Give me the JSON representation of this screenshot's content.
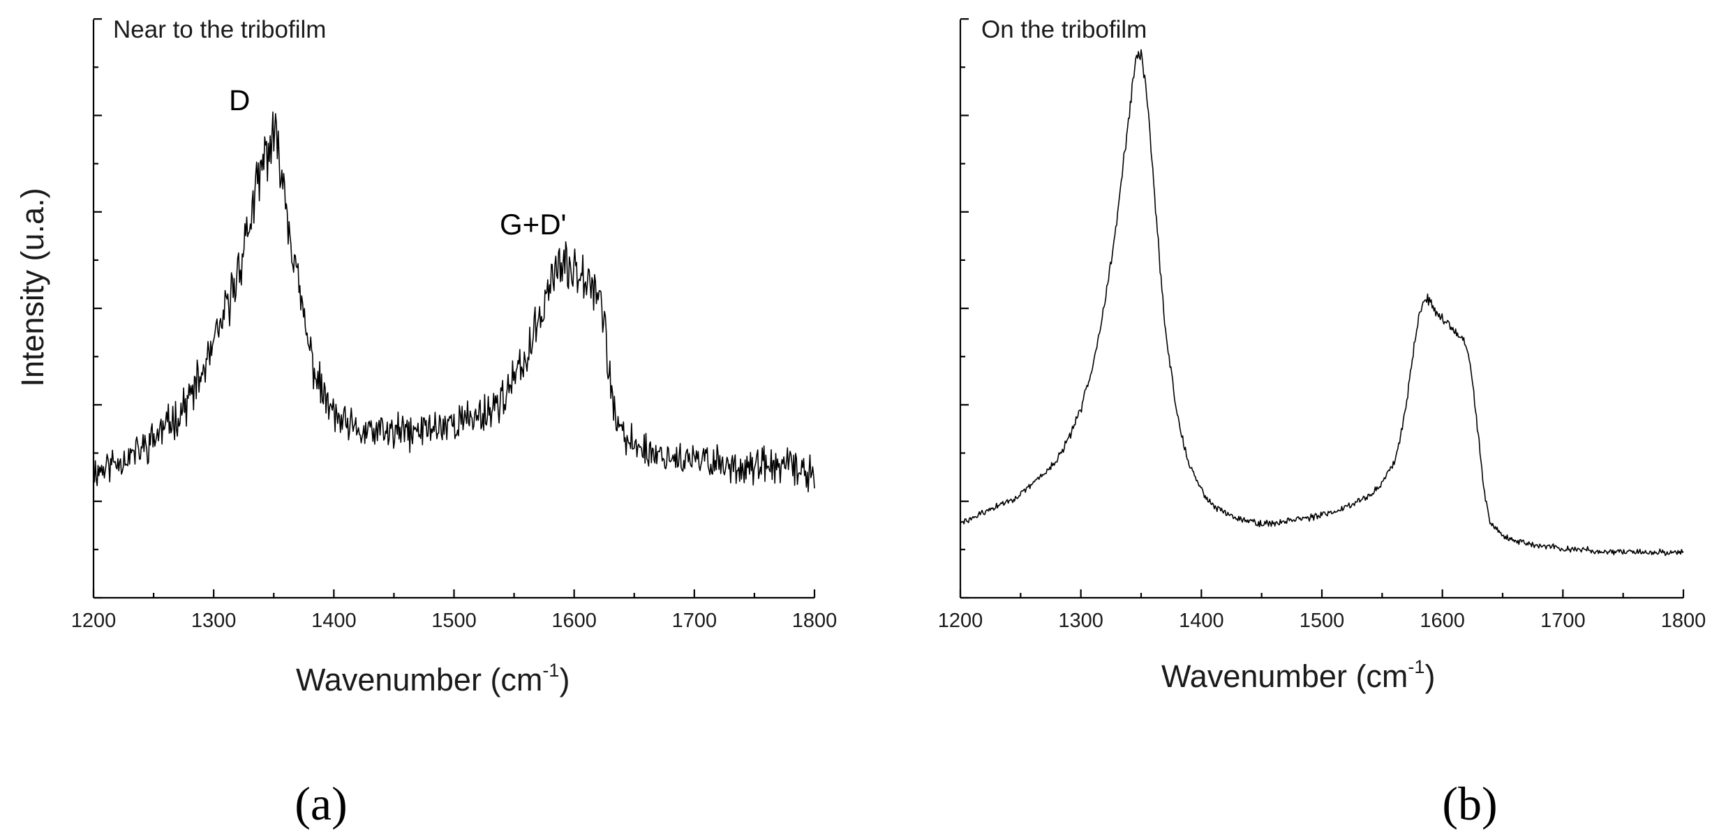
{
  "figure": {
    "captions": [
      "(a)",
      "(b)"
    ]
  },
  "chart_data": [
    {
      "type": "line",
      "panel": "a",
      "title": "Near to the tribofilm",
      "xlabel": "Wavenumber (cm",
      "xlabel_sup": "-1",
      "xlabel_close": ")",
      "ylabel": "Intensity (u.a.)",
      "xlim": [
        1200,
        1800
      ],
      "ylim": [
        0,
        1
      ],
      "x_ticks": [
        1200,
        1300,
        1400,
        1500,
        1600,
        1700,
        1800
      ],
      "x_tick_labels": [
        "1200",
        "1300",
        "1400",
        "1500",
        "1600",
        "1700",
        "1800"
      ],
      "y_tick_labels_shown": false,
      "annotations": [
        {
          "text": "D",
          "x": 1348,
          "y": 0.87
        },
        {
          "text": "G+D'",
          "x": 1600,
          "y": 0.63
        }
      ],
      "series": [
        {
          "name": "Near to the tribofilm",
          "noise": 0.028,
          "x": [
            1200,
            1210,
            1220,
            1230,
            1240,
            1250,
            1260,
            1270,
            1280,
            1290,
            1300,
            1310,
            1320,
            1330,
            1340,
            1345,
            1350,
            1355,
            1360,
            1370,
            1380,
            1390,
            1400,
            1410,
            1420,
            1430,
            1440,
            1450,
            1460,
            1470,
            1480,
            1490,
            1500,
            1510,
            1520,
            1530,
            1540,
            1550,
            1560,
            1570,
            1575,
            1580,
            1585,
            1590,
            1595,
            1600,
            1605,
            1610,
            1615,
            1620,
            1625,
            1630,
            1635,
            1640,
            1650,
            1660,
            1670,
            1680,
            1690,
            1700,
            1710,
            1720,
            1730,
            1740,
            1750,
            1760,
            1770,
            1780,
            1790,
            1800
          ],
          "y": [
            0.22,
            0.23,
            0.24,
            0.25,
            0.26,
            0.28,
            0.3,
            0.32,
            0.35,
            0.39,
            0.44,
            0.5,
            0.57,
            0.66,
            0.75,
            0.79,
            0.8,
            0.78,
            0.7,
            0.55,
            0.43,
            0.36,
            0.32,
            0.3,
            0.29,
            0.29,
            0.29,
            0.29,
            0.29,
            0.29,
            0.3,
            0.3,
            0.31,
            0.31,
            0.32,
            0.33,
            0.35,
            0.38,
            0.42,
            0.48,
            0.52,
            0.56,
            0.58,
            0.58,
            0.57,
            0.58,
            0.58,
            0.57,
            0.56,
            0.54,
            0.48,
            0.38,
            0.31,
            0.28,
            0.27,
            0.26,
            0.25,
            0.25,
            0.24,
            0.24,
            0.24,
            0.24,
            0.23,
            0.23,
            0.23,
            0.23,
            0.23,
            0.23,
            0.22,
            0.22
          ]
        }
      ]
    },
    {
      "type": "line",
      "panel": "b",
      "title": "On the tribofilm",
      "xlabel": "Wavenumber (cm",
      "xlabel_sup": "-1",
      "xlabel_close": ")",
      "ylabel": "",
      "xlim": [
        1200,
        1800
      ],
      "ylim": [
        0,
        1
      ],
      "x_ticks": [
        1200,
        1300,
        1400,
        1500,
        1600,
        1700,
        1800
      ],
      "x_tick_labels": [
        "1200",
        "1300",
        "1400",
        "1500",
        "1600",
        "1700",
        "1800"
      ],
      "y_tick_labels_shown": false,
      "annotations": [],
      "series": [
        {
          "name": "On the tribofilm",
          "noise": 0.006,
          "x": [
            1200,
            1210,
            1220,
            1230,
            1240,
            1250,
            1260,
            1270,
            1280,
            1290,
            1300,
            1310,
            1320,
            1330,
            1335,
            1340,
            1345,
            1348,
            1350,
            1355,
            1360,
            1365,
            1370,
            1380,
            1390,
            1400,
            1410,
            1420,
            1430,
            1440,
            1450,
            1460,
            1470,
            1480,
            1490,
            1500,
            1510,
            1520,
            1530,
            1540,
            1550,
            1560,
            1565,
            1570,
            1575,
            1580,
            1585,
            1590,
            1595,
            1600,
            1605,
            1610,
            1615,
            1620,
            1625,
            1630,
            1635,
            1640,
            1650,
            1660,
            1670,
            1680,
            1690,
            1700,
            1710,
            1720,
            1730,
            1740,
            1750,
            1760,
            1770,
            1780,
            1790,
            1800
          ],
          "y": [
            0.13,
            0.14,
            0.15,
            0.16,
            0.17,
            0.18,
            0.2,
            0.22,
            0.24,
            0.28,
            0.33,
            0.41,
            0.52,
            0.66,
            0.76,
            0.85,
            0.93,
            0.96,
            0.95,
            0.88,
            0.74,
            0.6,
            0.47,
            0.32,
            0.23,
            0.19,
            0.16,
            0.15,
            0.14,
            0.135,
            0.13,
            0.13,
            0.135,
            0.14,
            0.14,
            0.145,
            0.15,
            0.16,
            0.17,
            0.18,
            0.2,
            0.24,
            0.28,
            0.34,
            0.42,
            0.49,
            0.53,
            0.52,
            0.5,
            0.49,
            0.48,
            0.47,
            0.46,
            0.44,
            0.38,
            0.28,
            0.18,
            0.13,
            0.11,
            0.1,
            0.095,
            0.09,
            0.09,
            0.085,
            0.085,
            0.085,
            0.08,
            0.08,
            0.08,
            0.08,
            0.08,
            0.08,
            0.08,
            0.08
          ]
        }
      ]
    }
  ]
}
